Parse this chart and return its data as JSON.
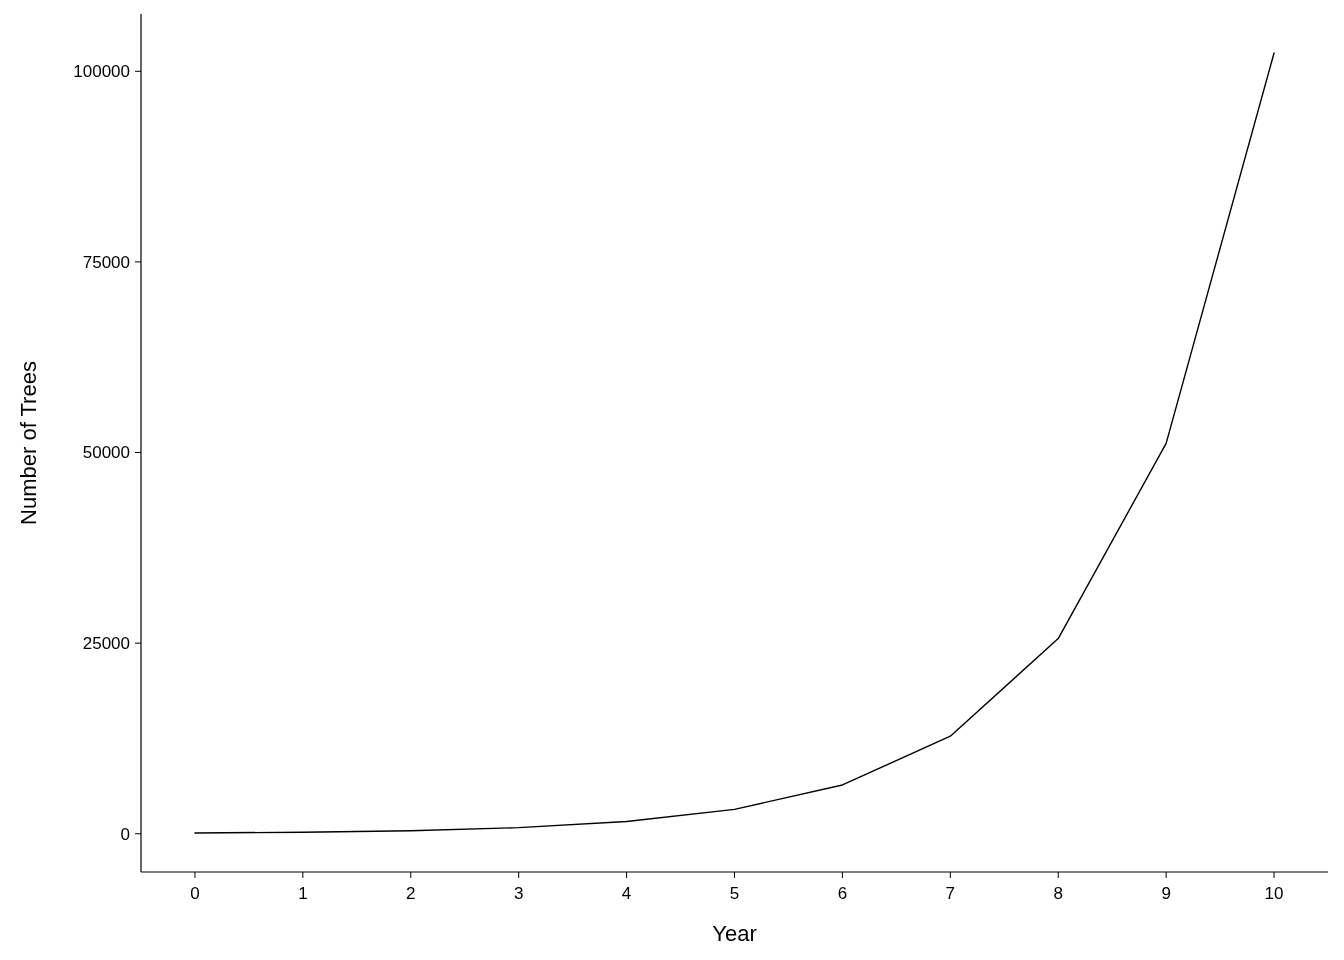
{
  "chart_data": {
    "type": "line",
    "xlabel": "Year",
    "ylabel": "Number of Trees",
    "x": [
      0,
      1,
      2,
      3,
      4,
      5,
      6,
      7,
      8,
      9,
      10
    ],
    "series": [
      {
        "color": "#000000",
        "values": [
          100,
          200,
          400,
          800,
          1600,
          3200,
          6400,
          12800,
          25600,
          51200,
          102400
        ]
      }
    ],
    "xlim": [
      -0.5,
      10.5
    ],
    "xticks": [
      0,
      1,
      2,
      3,
      4,
      5,
      6,
      7,
      8,
      9,
      10
    ],
    "ylim": [
      -5015,
      107515
    ],
    "yticks": [
      0,
      25000,
      50000,
      75000,
      100000
    ],
    "grid": false,
    "marker": "none",
    "line_style": "solid"
  }
}
